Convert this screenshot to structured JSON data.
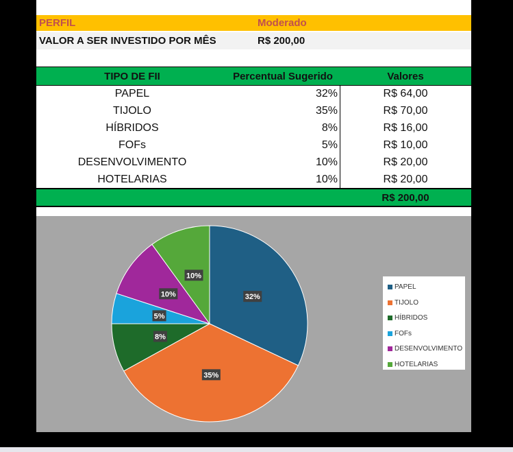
{
  "perfil": {
    "label": "PERFIL",
    "value": "Moderado"
  },
  "valor": {
    "label": "VALOR A SER INVESTIDO POR MÊS",
    "value": "R$ 200,00"
  },
  "table": {
    "headers": [
      "TIPO DE FII",
      "Percentual Sugerido",
      "Valores"
    ],
    "rows": [
      {
        "tipo": "PAPEL",
        "pct": "32%",
        "valor": "R$ 64,00"
      },
      {
        "tipo": "TIJOLO",
        "pct": "35%",
        "valor": "R$ 70,00"
      },
      {
        "tipo": "HÍBRIDOS",
        "pct": "8%",
        "valor": "R$ 16,00"
      },
      {
        "tipo": "FOFs",
        "pct": "5%",
        "valor": "R$ 10,00"
      },
      {
        "tipo": "DESENVOLVIMENTO",
        "pct": "10%",
        "valor": "R$ 20,00"
      },
      {
        "tipo": "HOTELARIAS",
        "pct": "10%",
        "valor": "R$ 20,00"
      }
    ],
    "total": "R$ 200,00"
  },
  "colors": {
    "header_green": "#00b050",
    "perfil_bg": "#ffc000",
    "perfil_text": "#c0504d",
    "chart_bg": "#a6a6a6"
  },
  "chart_data": {
    "type": "pie",
    "title": "",
    "legend_position": "right",
    "categories": [
      "PAPEL",
      "TIJOLO",
      "HÍBRIDOS",
      "FOFs",
      "DESENVOLVIMENTO",
      "HOTELARIAS"
    ],
    "values": [
      32,
      35,
      8,
      5,
      10,
      10
    ],
    "data_labels": [
      "32%",
      "35%",
      "8%",
      "5%",
      "10%",
      "10%"
    ],
    "colors": [
      "#1f5f85",
      "#ed7232",
      "#1e6b2a",
      "#1aa3dc",
      "#a0289b",
      "#55a83a"
    ]
  }
}
